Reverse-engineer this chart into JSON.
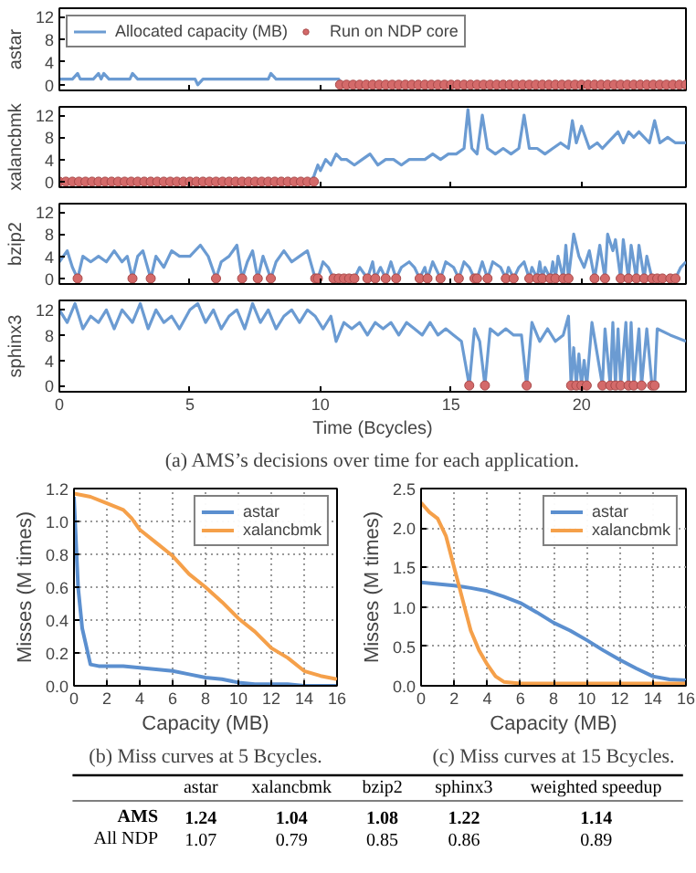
{
  "chart_data": [
    {
      "type": "line",
      "ylabel": "astar",
      "xlim": [
        0,
        24
      ],
      "ylim": [
        -1,
        13.5
      ],
      "xticks": [
        0,
        5,
        10,
        15,
        20
      ],
      "yticks": [
        0,
        4,
        8,
        12
      ],
      "tick_labels": "y",
      "legend": "top left",
      "series": [
        {
          "name": "Allocated capacity (MB)",
          "color": "#6b9bd2",
          "type": "line",
          "x": [
            0,
            0.5,
            0.7,
            0.8,
            1.3,
            1.5,
            1.6,
            1.7,
            1.9,
            2.7,
            2.8,
            3.0,
            5.2,
            5.3,
            5.5,
            8.0,
            8.1,
            8.3,
            10.7,
            10.8,
            24
          ],
          "values": [
            1,
            1,
            2,
            1,
            1,
            2,
            1,
            2,
            1,
            1,
            2,
            1,
            1,
            0,
            1,
            1,
            2,
            1,
            1,
            0,
            0
          ]
        },
        {
          "name": "Run on NDP core",
          "color": "#d46a6a",
          "type": "scatter",
          "marker": "circle",
          "x": [
            10.75,
            11,
            11.25,
            11.5,
            11.75,
            12,
            12.25,
            12.5,
            12.75,
            13,
            13.25,
            13.5,
            13.75,
            14,
            14.25,
            14.5,
            14.75,
            15,
            15.25,
            15.5,
            15.75,
            16,
            16.25,
            16.5,
            16.75,
            17,
            17.25,
            17.5,
            17.75,
            18,
            18.25,
            18.5,
            18.75,
            19,
            19.25,
            19.5,
            19.75,
            20,
            20.25,
            20.5,
            20.75,
            21,
            21.25,
            21.5,
            21.75,
            22,
            22.25,
            22.5,
            22.75,
            23,
            23.25,
            23.5,
            23.75,
            24
          ],
          "values": [
            0,
            0,
            0,
            0,
            0,
            0,
            0,
            0,
            0,
            0,
            0,
            0,
            0,
            0,
            0,
            0,
            0,
            0,
            0,
            0,
            0,
            0,
            0,
            0,
            0,
            0,
            0,
            0,
            0,
            0,
            0,
            0,
            0,
            0,
            0,
            0,
            0,
            0,
            0,
            0,
            0,
            0,
            0,
            0,
            0,
            0,
            0,
            0,
            0,
            0,
            0,
            0,
            0,
            0
          ]
        }
      ]
    },
    {
      "type": "line",
      "ylabel": "xalancbmk",
      "xlim": [
        0,
        24
      ],
      "ylim": [
        -1,
        13.5
      ],
      "xticks": [
        0,
        5,
        10,
        15,
        20
      ],
      "yticks": [
        0,
        4,
        8,
        12
      ],
      "tick_labels": "y",
      "series": [
        {
          "color": "#6b9bd2",
          "type": "line",
          "x": [
            0,
            9.6,
            9.75,
            9.9,
            10.0,
            10.2,
            10.4,
            10.6,
            10.8,
            11.0,
            11.3,
            11.6,
            11.9,
            12.2,
            12.5,
            12.8,
            13.1,
            13.4,
            13.7,
            14.0,
            14.3,
            14.6,
            14.9,
            15.2,
            15.5,
            15.65,
            15.8,
            16.0,
            16.2,
            16.4,
            16.7,
            17.0,
            17.3,
            17.6,
            17.8,
            18.0,
            18.3,
            18.6,
            18.9,
            19.2,
            19.5,
            19.65,
            19.8,
            20.0,
            20.3,
            20.6,
            20.8,
            21.0,
            21.2,
            21.4,
            21.6,
            21.8,
            22.0,
            22.2,
            22.4,
            22.6,
            22.8,
            23.0,
            23.3,
            23.6,
            24
          ],
          "values": [
            0,
            0,
            1,
            3,
            2,
            4,
            3,
            5,
            4,
            4,
            3,
            4,
            5,
            3,
            4,
            4,
            3,
            4,
            4,
            4,
            5,
            4,
            5,
            5,
            6,
            13,
            6,
            5,
            12,
            6,
            5,
            6,
            5,
            6,
            12,
            6,
            6,
            5,
            6,
            7,
            6,
            11,
            7,
            10,
            6,
            7,
            6,
            7,
            8,
            9,
            7,
            9,
            8,
            9,
            8,
            7,
            11,
            7,
            8,
            7,
            7
          ]
        },
        {
          "color": "#d46a6a",
          "type": "scatter",
          "marker": "circle",
          "x": [
            0,
            0.25,
            0.5,
            0.75,
            1,
            1.25,
            1.5,
            1.75,
            2,
            2.25,
            2.5,
            2.75,
            3,
            3.25,
            3.5,
            3.75,
            4,
            4.25,
            4.5,
            4.75,
            5,
            5.25,
            5.5,
            5.75,
            6,
            6.25,
            6.5,
            6.75,
            7,
            7.25,
            7.5,
            7.75,
            8,
            8.25,
            8.5,
            8.75,
            9,
            9.25,
            9.5,
            9.75
          ],
          "values": [
            0,
            0,
            0,
            0,
            0,
            0,
            0,
            0,
            0,
            0,
            0,
            0,
            0,
            0,
            0,
            0,
            0,
            0,
            0,
            0,
            0,
            0,
            0,
            0,
            0,
            0,
            0,
            0,
            0,
            0,
            0,
            0,
            0,
            0,
            0,
            0,
            0,
            0,
            0,
            0
          ]
        }
      ]
    },
    {
      "type": "line",
      "ylabel": "bzip2",
      "xlim": [
        0,
        24
      ],
      "ylim": [
        -1,
        13.5
      ],
      "xticks": [
        0,
        5,
        10,
        15,
        20
      ],
      "yticks": [
        0,
        4,
        8,
        12
      ],
      "tick_labels": "y",
      "series": [
        {
          "color": "#6b9bd2",
          "type": "line",
          "x": [
            0,
            0.3,
            0.5,
            0.7,
            0.9,
            1.2,
            1.5,
            1.8,
            2.1,
            2.4,
            2.6,
            2.8,
            3.0,
            3.2,
            3.5,
            3.7,
            4.0,
            4.3,
            4.6,
            5.0,
            5.4,
            5.7,
            6.0,
            6.2,
            6.5,
            6.8,
            7.0,
            7.2,
            7.4,
            7.6,
            7.8,
            8.1,
            8.3,
            8.6,
            8.9,
            9.2,
            9.5,
            9.8,
            9.9,
            10.1,
            10.3,
            10.5,
            10.7,
            10.9,
            11.1,
            11.3,
            11.5,
            11.8,
            12.0,
            12.1,
            12.3,
            12.5,
            12.7,
            12.9,
            13.1,
            13.4,
            13.6,
            13.8,
            14.0,
            14.1,
            14.3,
            14.6,
            14.8,
            15.1,
            15.3,
            15.5,
            15.7,
            15.9,
            16.0,
            16.2,
            16.4,
            16.6,
            16.9,
            17.1,
            17.2,
            17.4,
            17.6,
            17.8,
            18.0,
            18.1,
            18.3,
            18.4,
            18.5,
            18.6,
            18.8,
            18.9,
            19.0,
            19.1,
            19.3,
            19.4,
            19.5,
            19.7,
            19.9,
            20.1,
            20.3,
            20.5,
            20.7,
            20.9,
            21.0,
            21.2,
            21.3,
            21.5,
            21.6,
            21.8,
            21.9,
            22.1,
            22.2,
            22.4,
            22.5,
            22.7,
            22.8,
            22.9,
            23.1,
            23.4,
            23.6,
            23.8,
            24
          ],
          "values": [
            3,
            5,
            2,
            0,
            4,
            3,
            4,
            3,
            5,
            3,
            4,
            0,
            4,
            5,
            0,
            4,
            2,
            5,
            4,
            4,
            6,
            4,
            0,
            3,
            4,
            6,
            0,
            3,
            5,
            0,
            4,
            0,
            3,
            5,
            3,
            4,
            5,
            0,
            0,
            3,
            2,
            0,
            0,
            0,
            0,
            0,
            2,
            0,
            3,
            0,
            2,
            0,
            3,
            0,
            2,
            3,
            2,
            0,
            2,
            0,
            3,
            0,
            3,
            2,
            0,
            3,
            2,
            0,
            0,
            3,
            0,
            3,
            2,
            0,
            2,
            0,
            2,
            3,
            0,
            2,
            0,
            3,
            0,
            2,
            0,
            3,
            0,
            4,
            0,
            6,
            0,
            8,
            4,
            2,
            5,
            0,
            6,
            0,
            8,
            5,
            7,
            0,
            7,
            0,
            6,
            0,
            6,
            0,
            4,
            0,
            0,
            0,
            0,
            0,
            0,
            2,
            3
          ]
        },
        {
          "color": "#d46a6a",
          "type": "scatter",
          "marker": "circle",
          "x": [
            0.7,
            2.8,
            3.5,
            6.0,
            7.0,
            7.6,
            8.1,
            9.8,
            9.9,
            10.5,
            10.7,
            10.9,
            11.1,
            11.3,
            11.8,
            12.1,
            12.5,
            12.9,
            13.8,
            14.1,
            14.6,
            15.3,
            15.9,
            16.0,
            16.4,
            17.1,
            17.4,
            18.0,
            18.3,
            18.5,
            18.8,
            19.0,
            19.3,
            19.5,
            20.5,
            20.9,
            21.5,
            21.8,
            22.1,
            22.4,
            22.7,
            22.9,
            23.1,
            23.4,
            23.6
          ],
          "values": [
            0,
            0,
            0,
            0,
            0,
            0,
            0,
            0,
            0,
            0,
            0,
            0,
            0,
            0,
            0,
            0,
            0,
            0,
            0,
            0,
            0,
            0,
            0,
            0,
            0,
            0,
            0,
            0,
            0,
            0,
            0,
            0,
            0,
            0,
            0,
            0,
            0,
            0,
            0,
            0,
            0,
            0,
            0,
            0,
            0
          ]
        }
      ]
    },
    {
      "type": "line",
      "ylabel": "sphinx3",
      "xlabel": "Time (Bcycles)",
      "xlim": [
        0,
        24
      ],
      "ylim": [
        -1,
        13.5
      ],
      "xticks": [
        0,
        5,
        10,
        15,
        20
      ],
      "yticks": [
        0,
        4,
        8,
        12
      ],
      "annotations": [
        "(a) AMS’s decisions over time for each application."
      ],
      "series": [
        {
          "color": "#6b9bd2",
          "type": "line",
          "x": [
            0,
            0.3,
            0.6,
            0.9,
            1.2,
            1.5,
            1.8,
            2.1,
            2.4,
            2.8,
            3.1,
            3.4,
            3.7,
            4.0,
            4.3,
            4.6,
            5.0,
            5.3,
            5.6,
            5.9,
            6.2,
            6.5,
            6.8,
            7.1,
            7.4,
            7.7,
            8.0,
            8.3,
            8.6,
            8.9,
            9.2,
            9.5,
            9.8,
            10.1,
            10.4,
            10.6,
            10.9,
            11.2,
            11.5,
            11.8,
            12.1,
            12.4,
            12.7,
            13.0,
            13.3,
            13.6,
            13.9,
            14.2,
            14.5,
            14.8,
            15.1,
            15.4,
            15.7,
            15.9,
            16.1,
            16.3,
            16.5,
            16.8,
            17.1,
            17.4,
            17.7,
            17.9,
            18.1,
            18.4,
            18.7,
            19.0,
            19.3,
            19.5,
            19.6,
            19.7,
            19.8,
            19.9,
            20.0,
            20.1,
            20.2,
            20.4,
            20.6,
            20.8,
            20.9,
            21.1,
            21.2,
            21.3,
            21.4,
            21.5,
            21.7,
            21.8,
            21.9,
            22.0,
            22.2,
            22.3,
            22.5,
            22.7,
            22.8,
            22.9,
            23.4,
            24
          ],
          "values": [
            12,
            10,
            13,
            9,
            11,
            10,
            12,
            9,
            12,
            10,
            13,
            9,
            12,
            10,
            11,
            9,
            12,
            13,
            10,
            12,
            9,
            11,
            12,
            9,
            13,
            10,
            12,
            9,
            11,
            12,
            10,
            12,
            11,
            9,
            11,
            7,
            10,
            9,
            10,
            8,
            10,
            9,
            10,
            8,
            10,
            9,
            8,
            10,
            8,
            9,
            8,
            7,
            0,
            9,
            7,
            0,
            9,
            8,
            9,
            8,
            8,
            0,
            10,
            7,
            9,
            7,
            8,
            11,
            0,
            6,
            0,
            5,
            0,
            4,
            0,
            10,
            5,
            0,
            9,
            0,
            10,
            0,
            9,
            0,
            10,
            0,
            10,
            0,
            9,
            0,
            9,
            0,
            0,
            9,
            8,
            7
          ]
        },
        {
          "color": "#d46a6a",
          "type": "scatter",
          "marker": "circle",
          "x": [
            15.7,
            16.3,
            17.9,
            19.6,
            19.8,
            20.0,
            20.2,
            20.8,
            21.1,
            21.3,
            21.5,
            21.8,
            22.0,
            22.3,
            22.7,
            22.8
          ],
          "values": [
            0,
            0,
            0,
            0,
            0,
            0,
            0,
            0,
            0,
            0,
            0,
            0,
            0,
            0,
            0,
            0
          ]
        }
      ]
    },
    {
      "type": "line",
      "xlabel": "Capacity (MB)",
      "ylabel": "Misses (M times)",
      "xlim": [
        0,
        16
      ],
      "ylim": [
        0,
        1.2
      ],
      "xticks": [
        0,
        2,
        4,
        6,
        8,
        10,
        12,
        14,
        16
      ],
      "yticks": [
        {
          "value": 0,
          "label": "0.0"
        },
        0.2,
        0.4,
        0.6,
        0.8,
        {
          "value": 1,
          "label": "1.0"
        },
        1.2
      ],
      "grid": true,
      "legend": "top right",
      "annotations": [
        "(b) Miss curves at 5 Bcycles."
      ],
      "series": [
        {
          "name": "astar",
          "color": "#5b8fcf",
          "x": [
            0,
            0.25,
            0.5,
            1,
            1.5,
            2,
            3,
            4,
            5,
            6,
            7,
            8,
            9,
            10,
            11,
            12,
            13,
            14,
            15,
            16
          ],
          "values": [
            1.15,
            0.6,
            0.35,
            0.13,
            0.12,
            0.12,
            0.12,
            0.11,
            0.1,
            0.09,
            0.07,
            0.05,
            0.04,
            0.02,
            0.01,
            0.01,
            0.01,
            0,
            0,
            0
          ]
        },
        {
          "name": "xalancbmk",
          "color": "#f5a04a",
          "x": [
            0,
            1,
            2,
            3,
            3.5,
            4,
            5,
            6,
            7,
            8,
            9,
            10,
            11,
            12,
            13,
            14,
            15,
            16
          ],
          "values": [
            1.17,
            1.15,
            1.11,
            1.07,
            1.02,
            0.95,
            0.87,
            0.79,
            0.68,
            0.6,
            0.51,
            0.41,
            0.33,
            0.23,
            0.17,
            0.09,
            0.06,
            0.04
          ]
        }
      ]
    },
    {
      "type": "line",
      "xlabel": "Capacity (MB)",
      "ylabel": "Misses (M times)",
      "xlim": [
        0,
        16
      ],
      "ylim": [
        0,
        2.5
      ],
      "xticks": [
        0,
        2,
        4,
        6,
        8,
        10,
        12,
        14,
        16
      ],
      "yticks": [
        {
          "value": 0,
          "label": "0.0"
        },
        0.5,
        {
          "value": 1,
          "label": "1.0"
        },
        1.5,
        {
          "value": 2,
          "label": "2.0"
        },
        2.5
      ],
      "grid": true,
      "legend": "top right",
      "annotations": [
        "(c) Miss curves at 15 Bcycles."
      ],
      "series": [
        {
          "name": "astar",
          "color": "#5b8fcf",
          "x": [
            0,
            1,
            2,
            3,
            4,
            5,
            6,
            7,
            8,
            9,
            10,
            11,
            12,
            13,
            14,
            15,
            16
          ],
          "values": [
            1.31,
            1.29,
            1.27,
            1.24,
            1.2,
            1.13,
            1.05,
            0.93,
            0.8,
            0.7,
            0.58,
            0.45,
            0.33,
            0.22,
            0.12,
            0.08,
            0.07
          ]
        },
        {
          "name": "xalancbmk",
          "color": "#f5a04a",
          "x": [
            0,
            0.5,
            1,
            1.5,
            2,
            2.5,
            3,
            3.5,
            4,
            4.5,
            5,
            6,
            8,
            10,
            12,
            14,
            16
          ],
          "values": [
            2.32,
            2.2,
            2.12,
            1.9,
            1.5,
            1.1,
            0.7,
            0.45,
            0.27,
            0.12,
            0.05,
            0.03,
            0.03,
            0.03,
            0.03,
            0.03,
            0.03
          ]
        }
      ]
    },
    {
      "type": "other",
      "categories": [
        "astar",
        "xalancbmk",
        "bzip2",
        "sphinx3",
        "weighted speedup"
      ],
      "data_labels": true,
      "series": [
        {
          "name": "AMS",
          "values": [
            1.24,
            1.04,
            1.08,
            1.22,
            1.14
          ]
        },
        {
          "name": "All NDP",
          "values": [
            1.07,
            0.79,
            0.85,
            0.86,
            0.89
          ]
        }
      ]
    }
  ]
}
